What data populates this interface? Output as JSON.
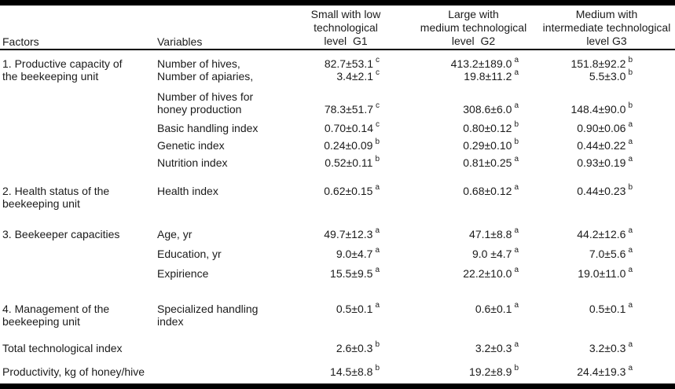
{
  "table": {
    "header": {
      "factors": "Factors",
      "variables": "Variables",
      "groups": [
        {
          "line1": "Small with low",
          "line2": "technological",
          "line3": "level  G1"
        },
        {
          "line1": "Large with",
          "line2": "medium technological",
          "line3": "level  G2"
        },
        {
          "line1": "Medium with",
          "line2": "intermediate technological",
          "line3": "level G3"
        }
      ]
    },
    "sections": [
      {
        "factor_line1": "1. Productive capacity of",
        "factor_line2": "the beekeeping unit",
        "rows": [
          {
            "variable": "Number of hives,",
            "g1v": "82.7±53.1",
            "g1s": "c",
            "g2v": "413.2±189.0",
            "g2s": "a",
            "g3v": "151.8±92.2",
            "g3s": "b"
          },
          {
            "variable": "Number of apiaries,",
            "g1v": "3.4±2.1",
            "g1s": "c",
            "g2v": "19.8±11.2",
            "g2s": "a",
            "g3v": "5.5±3.0",
            "g3s": "b"
          },
          {
            "variable_line1": "Number of hives for",
            "variable_line2": "honey production",
            "g1v": "78.3±51.7",
            "g1s": "c",
            "g2v": "308.6±6.0",
            "g2s": "a",
            "g3v": "148.4±90.0",
            "g3s": "b"
          },
          {
            "variable": "Basic handling index",
            "g1v": "0.70±0.14",
            "g1s": "c",
            "g2v": "0.80±0.12",
            "g2s": "b",
            "g3v": "0.90±0.06",
            "g3s": "a"
          },
          {
            "variable": "Genetic index",
            "g1v": "0.24±0.09",
            "g1s": "b",
            "g2v": "0.29±0.10",
            "g2s": "b",
            "g3v": "0.44±0.22",
            "g3s": "a"
          },
          {
            "variable": "Nutrition index",
            "g1v": "0.52±0.11",
            "g1s": "b",
            "g2v": "0.81±0.25",
            "g2s": "a",
            "g3v": "0.93±0.19",
            "g3s": "a"
          }
        ]
      },
      {
        "factor_line1": "2. Health status of the",
        "factor_line2": "beekeeping unit",
        "rows": [
          {
            "variable": "Health index",
            "g1v": "0.62±0.15",
            "g1s": "a",
            "g2v": "0.68±0.12",
            "g2s": "a",
            "g3v": "0.44±0.23",
            "g3s": "b"
          }
        ]
      },
      {
        "factor_line1": "3. Beekeeper capacities",
        "rows": [
          {
            "variable": "Age, yr",
            "g1v": "49.7±12.3",
            "g1s": "a",
            "g2v": "47.1±8.8",
            "g2s": "a",
            "g3v": "44.2±12.6",
            "g3s": "a"
          },
          {
            "variable": "Education, yr",
            "g1v": "9.0±4.7",
            "g1s": "a",
            "g2v": "9.0 ±4.7",
            "g2s": "a",
            "g3v": "7.0±5.6",
            "g3s": "a"
          },
          {
            "variable": "Expirience",
            "g1v": "15.5±9.5",
            "g1s": "a",
            "g2v": "22.2±10.0",
            "g2s": "a",
            "g3v": "19.0±11.0",
            "g3s": "a"
          }
        ]
      },
      {
        "factor_line1": "4. Management of the",
        "factor_line2": "beekeeping unit",
        "rows": [
          {
            "variable": "Specialized handling index",
            "g1v": "0.5±0.1",
            "g1s": "a",
            "g2v": "0.6±0.1",
            "g2s": "a",
            "g3v": "0.5±0.1",
            "g3s": "a"
          }
        ]
      },
      {
        "label": "Total technological index",
        "row": {
          "g1v": "2.6±0.3",
          "g1s": "b",
          "g2v": "3.2±0.3",
          "g2s": "a",
          "g3v": "3.2±0.3",
          "g3s": "a"
        }
      },
      {
        "label": "Productivity, kg of honey/hive",
        "row": {
          "g1v": "14.5±8.8",
          "g1s": "b",
          "g2v": "19.2±8.9",
          "g2s": "b",
          "g3v": "24.4±19.3",
          "g3s": "a"
        }
      }
    ]
  }
}
